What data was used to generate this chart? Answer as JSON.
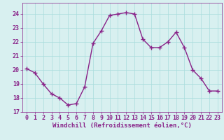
{
  "x": [
    0,
    1,
    2,
    3,
    4,
    5,
    6,
    7,
    8,
    9,
    10,
    11,
    12,
    13,
    14,
    15,
    16,
    17,
    18,
    19,
    20,
    21,
    22,
    23
  ],
  "y": [
    20.1,
    19.8,
    19.0,
    18.3,
    18.0,
    17.5,
    17.6,
    18.8,
    21.9,
    22.8,
    23.9,
    24.0,
    24.1,
    24.0,
    22.2,
    21.6,
    21.6,
    22.0,
    22.7,
    21.6,
    20.0,
    19.4,
    18.5,
    18.5
  ],
  "line_color": "#882288",
  "marker": "+",
  "marker_size": 4,
  "linewidth": 1.0,
  "xlabel": "Windchill (Refroidissement éolien,°C)",
  "ylim": [
    17,
    24.8
  ],
  "xlim": [
    -0.5,
    23.5
  ],
  "yticks": [
    17,
    18,
    19,
    20,
    21,
    22,
    23,
    24
  ],
  "xticks": [
    0,
    1,
    2,
    3,
    4,
    5,
    6,
    7,
    8,
    9,
    10,
    11,
    12,
    13,
    14,
    15,
    16,
    17,
    18,
    19,
    20,
    21,
    22,
    23
  ],
  "bg_color": "#d8f0f0",
  "grid_color": "#aadddd",
  "tick_color": "#882288",
  "label_color": "#882288",
  "xlabel_fontsize": 6.5,
  "tick_fontsize": 6.0,
  "marker_color": "#882288"
}
